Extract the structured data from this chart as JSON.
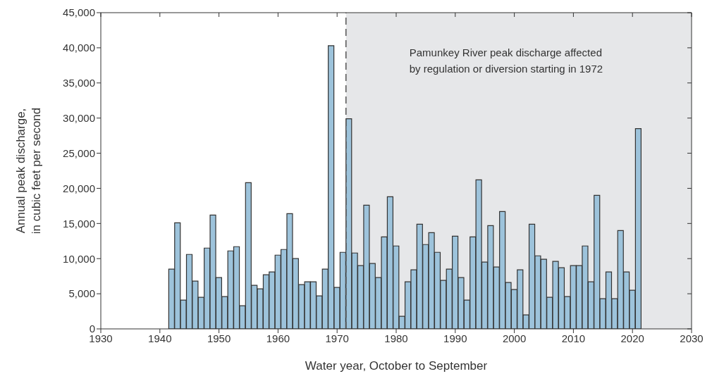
{
  "chart_data": {
    "type": "bar",
    "xlabel": "Water year, October to September",
    "ylabel": "Annual peak discharge,\nin cubic feet per second",
    "x": [
      1942,
      1943,
      1944,
      1945,
      1946,
      1947,
      1948,
      1949,
      1950,
      1951,
      1952,
      1953,
      1954,
      1955,
      1956,
      1957,
      1958,
      1959,
      1960,
      1961,
      1962,
      1963,
      1964,
      1965,
      1966,
      1967,
      1968,
      1969,
      1970,
      1971,
      1972,
      1973,
      1974,
      1975,
      1976,
      1977,
      1978,
      1979,
      1980,
      1981,
      1982,
      1983,
      1984,
      1985,
      1986,
      1987,
      1988,
      1989,
      1990,
      1991,
      1992,
      1993,
      1994,
      1995,
      1996,
      1997,
      1998,
      1999,
      2000,
      2001,
      2002,
      2003,
      2004,
      2005,
      2006,
      2007,
      2008,
      2009,
      2010,
      2011,
      2012,
      2013,
      2014,
      2015,
      2016,
      2017,
      2018,
      2019,
      2020,
      2021
    ],
    "values": [
      8500,
      15100,
      4100,
      10600,
      6800,
      4500,
      11500,
      16200,
      7300,
      4600,
      11100,
      11700,
      3300,
      20800,
      6200,
      5700,
      7700,
      8100,
      10500,
      11300,
      16400,
      10000,
      6300,
      6700,
      6700,
      4700,
      8500,
      40300,
      5900,
      10900,
      29900,
      10800,
      9000,
      17600,
      9300,
      7300,
      13100,
      18800,
      11800,
      1800,
      6700,
      8400,
      14900,
      12000,
      13700,
      10900,
      6900,
      8500,
      13200,
      7300,
      4100,
      13100,
      21200,
      9500,
      14700,
      8800,
      16700,
      6600,
      5600,
      8400,
      2000,
      14900,
      10400,
      9900,
      4500,
      9600,
      8700,
      4600,
      9000,
      9000,
      11800,
      6700,
      19000,
      4300,
      8100,
      4300,
      14000,
      8100,
      5500,
      28500
    ],
    "color": "#9dc3db",
    "xlim": [
      1930,
      2030
    ],
    "xticks": [
      1930,
      1940,
      1950,
      1960,
      1970,
      1980,
      1990,
      2000,
      2010,
      2020,
      2030
    ],
    "ylim": [
      0,
      45000
    ],
    "yticks": [
      0,
      {
        "value": 5000,
        "label": "5,000"
      },
      {
        "value": 10000,
        "label": "10,000"
      },
      {
        "value": 15000,
        "label": "15,000"
      },
      {
        "value": 20000,
        "label": "20,000"
      },
      {
        "value": 25000,
        "label": "25,000"
      },
      {
        "value": 30000,
        "label": "30,000"
      },
      {
        "value": 35000,
        "label": "35,000"
      },
      {
        "value": 40000,
        "label": "40,000"
      },
      {
        "value": 45000,
        "label": "45,000"
      }
    ],
    "bands": [
      {
        "axis": "x",
        "from": 1971.5,
        "to": 2030,
        "label": "Pamunkey River peak discharge affected\nby regulation or diversion starting in 1972",
        "color": "#e6e7e9"
      }
    ],
    "ref_lines": [
      {
        "axis": "x",
        "value": 1971.5,
        "color": "#555555",
        "line_style": "dashed"
      }
    ],
    "grid": false,
    "legend": false
  }
}
